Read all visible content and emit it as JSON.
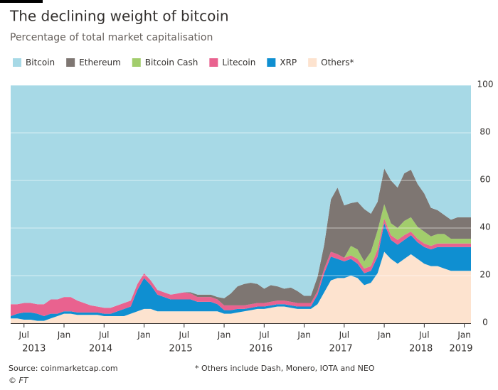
{
  "chart_data": {
    "type": "stacked_area",
    "title": "The declining weight of bitcoin",
    "subtitle": "Percentage of total market capitalisation",
    "source": "Source: coinmarketcap.com",
    "footnote": "* Others include Dash, Monero, IOTA and NEO",
    "credit": "© FT",
    "x": [
      "2013-05",
      "2013-06",
      "2013-07",
      "2013-08",
      "2013-09",
      "2013-10",
      "2013-11",
      "2013-12",
      "2014-01",
      "2014-02",
      "2014-03",
      "2014-04",
      "2014-05",
      "2014-06",
      "2014-07",
      "2014-08",
      "2014-09",
      "2014-10",
      "2014-11",
      "2014-12",
      "2015-01",
      "2015-02",
      "2015-03",
      "2015-04",
      "2015-05",
      "2015-06",
      "2015-07",
      "2015-08",
      "2015-09",
      "2015-10",
      "2015-11",
      "2015-12",
      "2016-01",
      "2016-02",
      "2016-03",
      "2016-04",
      "2016-05",
      "2016-06",
      "2016-07",
      "2016-08",
      "2016-09",
      "2016-10",
      "2016-11",
      "2016-12",
      "2017-01",
      "2017-02",
      "2017-03",
      "2017-04",
      "2017-05",
      "2017-06",
      "2017-07",
      "2017-08",
      "2017-09",
      "2017-10",
      "2017-11",
      "2017-12",
      "2018-01",
      "2018-02",
      "2018-03",
      "2018-04",
      "2018-05",
      "2018-06",
      "2018-07",
      "2018-08",
      "2018-09",
      "2018-10",
      "2018-11",
      "2018-12",
      "2019-01",
      "2019-02"
    ],
    "series": [
      {
        "name": "Bitcoin",
        "color": "#a7d9e6",
        "values": [
          92,
          92,
          91.5,
          91.5,
          92,
          92,
          90,
          90,
          89,
          89,
          90.5,
          91.5,
          92.5,
          93,
          93.5,
          93.5,
          92.5,
          91.5,
          90.5,
          83.5,
          79,
          82,
          86,
          87,
          88,
          87.5,
          87,
          87,
          88,
          88,
          88,
          89,
          89.5,
          87.5,
          84.5,
          83.5,
          83,
          83.5,
          85.5,
          84,
          84.5,
          85.5,
          85,
          86.5,
          88.5,
          88.5,
          80.5,
          67,
          48,
          43,
          50.5,
          49.5,
          49,
          52,
          54,
          49,
          35,
          40,
          43,
          37,
          35.5,
          41.5,
          45.5,
          51.5,
          52.5,
          54.5,
          56.5,
          55.5,
          55.5,
          55.5
        ]
      },
      {
        "name": "Ethereum",
        "color": "#7e7672",
        "values": [
          0,
          0,
          0,
          0,
          0,
          0,
          0,
          0,
          0,
          0,
          0,
          0,
          0,
          0,
          0,
          0,
          0,
          0,
          0,
          0,
          0,
          0,
          0,
          0,
          0,
          0,
          0,
          0.5,
          1,
          1,
          1,
          1,
          3,
          5,
          8,
          9,
          9,
          8,
          6,
          7,
          6,
          5,
          6,
          5,
          3,
          3,
          6,
          10,
          22,
          28,
          22,
          18,
          20,
          22,
          16,
          12,
          15,
          18,
          17,
          20,
          20,
          18,
          16,
          12,
          10,
          8,
          8,
          9,
          9,
          9
        ]
      },
      {
        "name": "Bitcoin Cash",
        "color": "#a2cd6c",
        "values": [
          0,
          0,
          0,
          0,
          0,
          0,
          0,
          0,
          0,
          0,
          0,
          0,
          0,
          0,
          0,
          0,
          0,
          0,
          0,
          0,
          0,
          0,
          0,
          0,
          0,
          0,
          0,
          0,
          0,
          0,
          0,
          0,
          0,
          0,
          0,
          0,
          0,
          0,
          0,
          0,
          0,
          0,
          0,
          0,
          0,
          0,
          0,
          0,
          0,
          0,
          0,
          4,
          4,
          3,
          6,
          8,
          6,
          5,
          5,
          6,
          6,
          5,
          5,
          4,
          4,
          4,
          2,
          2,
          2,
          2
        ]
      },
      {
        "name": "Litecoin",
        "color": "#e9628f",
        "values": [
          5,
          4,
          4,
          4,
          4,
          5,
          6,
          6,
          6,
          6,
          5,
          4,
          3,
          2.5,
          2.5,
          2.5,
          2.5,
          2.5,
          2.5,
          2.5,
          2,
          2,
          2,
          2,
          2,
          2.5,
          3,
          2.5,
          2,
          2,
          2,
          2,
          2,
          2,
          1.5,
          1.5,
          1.5,
          1.5,
          1.5,
          1.5,
          1.5,
          1.5,
          1.5,
          1.5,
          1.5,
          1.5,
          1.5,
          2,
          2,
          2,
          1.5,
          1.5,
          2,
          2,
          2,
          3,
          2,
          2,
          2,
          2,
          1.5,
          1.5,
          1.5,
          1.5,
          1.5,
          1.5,
          1.5,
          1.5,
          1.5,
          1.5
        ]
      },
      {
        "name": "XRP",
        "color": "#0f8fd1",
        "values": [
          1,
          2,
          3,
          3,
          3,
          2,
          2,
          1,
          1,
          1,
          1,
          1,
          1,
          1,
          1,
          1,
          2,
          3,
          3,
          9,
          13,
          10,
          7,
          6,
          5,
          5,
          5,
          5,
          4,
          4,
          4,
          3,
          1.5,
          1.5,
          1.5,
          1,
          1,
          1,
          1,
          1,
          1,
          1,
          1,
          1,
          1,
          1,
          4,
          8,
          10,
          8,
          7,
          7,
          6,
          5,
          5,
          7,
          12,
          8,
          8,
          8,
          8,
          7,
          7,
          7,
          8,
          9,
          10,
          10,
          10,
          10
        ]
      },
      {
        "name": "Others*",
        "color": "#fde3cf",
        "values": [
          2,
          2,
          1.5,
          1.5,
          1,
          1,
          2,
          3,
          4,
          4,
          3.5,
          3.5,
          3.5,
          3.5,
          3,
          3,
          3,
          3,
          4,
          5,
          6,
          6,
          5,
          5,
          5,
          5,
          5,
          5,
          5,
          5,
          5,
          5,
          4,
          4,
          4.5,
          5,
          5.5,
          6,
          6,
          6.5,
          7,
          7,
          6.5,
          6,
          6,
          6,
          8,
          13,
          18,
          19,
          19,
          20,
          19,
          16,
          17,
          21,
          30,
          27,
          25,
          27,
          29,
          27,
          25,
          24,
          24,
          23,
          22,
          22,
          22,
          22
        ]
      }
    ],
    "xlim": [
      "2013-05",
      "2019-02"
    ],
    "xticks": [
      {
        "value": "2013-07",
        "label": "Jul"
      },
      {
        "value": "2014-01",
        "label": "Jan"
      },
      {
        "value": "2014-07",
        "label": "Jul"
      },
      {
        "value": "2015-01",
        "label": "Jan"
      },
      {
        "value": "2015-07",
        "label": "Jul"
      },
      {
        "value": "2016-01",
        "label": "Jan"
      },
      {
        "value": "2016-07",
        "label": "Jul"
      },
      {
        "value": "2017-01",
        "label": "Jan"
      },
      {
        "value": "2017-07",
        "label": "Jul"
      },
      {
        "value": "2018-01",
        "label": "Jan"
      },
      {
        "value": "2018-07",
        "label": "Jul"
      },
      {
        "value": "2019-01",
        "label": "Jan"
      }
    ],
    "year_labels": [
      "2013",
      "2014",
      "2015",
      "2016",
      "2017",
      "2018",
      "2019"
    ],
    "ylim": [
      0,
      100
    ],
    "yticks": [
      0,
      20,
      40,
      60,
      80,
      100
    ],
    "y_axis_side": "right",
    "grid": true,
    "legend": "top"
  }
}
